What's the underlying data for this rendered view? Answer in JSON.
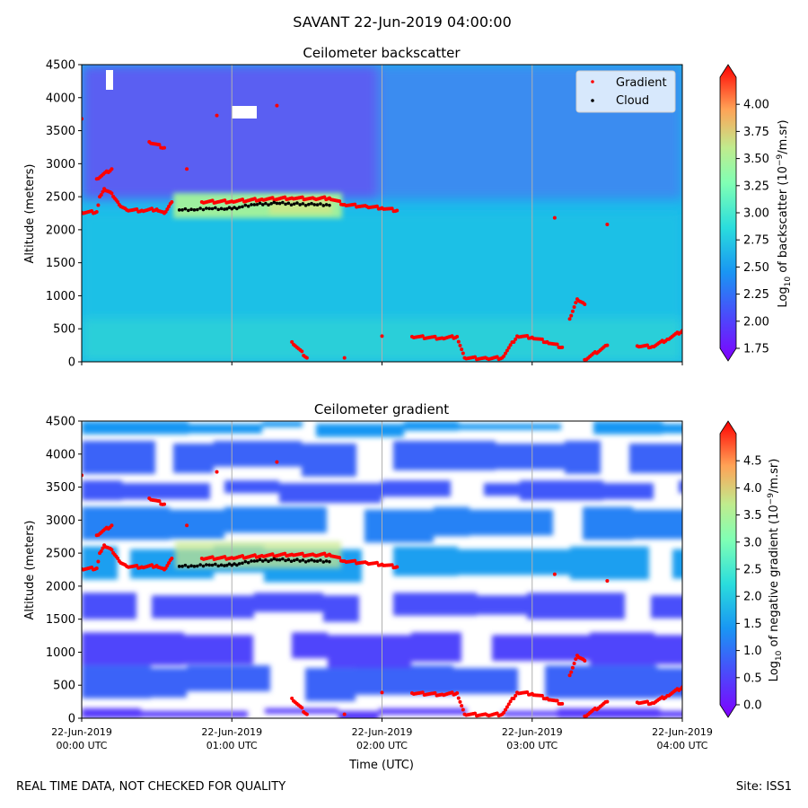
{
  "figure": {
    "suptitle": "SAVANT 22-Jun-2019 04:00:00",
    "footer_left": "REAL TIME DATA, NOT CHECKED FOR QUALITY",
    "footer_right": "Site: ISS1"
  },
  "chart_data": [
    {
      "type": "heatmap",
      "title": "Ceilometer backscatter",
      "xlabel": "",
      "ylabel": "Altitude (meters)",
      "ylim": [
        0,
        4500
      ],
      "xlim_hours": [
        0,
        4
      ],
      "yticks": [
        "0",
        "500",
        "1000",
        "1500",
        "2000",
        "2500",
        "3000",
        "3500",
        "4000",
        "4500"
      ],
      "colorbar": {
        "label_prefix": "Log",
        "label_sub": "10",
        "label_mid": " of backscatter (10",
        "label_sup": "−9",
        "label_suffix": "/m.sr)",
        "range": [
          1.75,
          4.25
        ],
        "ticks": [
          "1.75",
          "2.00",
          "2.25",
          "2.50",
          "2.75",
          "3.00",
          "3.25",
          "3.50",
          "3.75",
          "4.00"
        ]
      },
      "legend": {
        "placement": "top-right",
        "entries": [
          {
            "name": "Gradient",
            "color": "#ff0000"
          },
          {
            "name": "Cloud",
            "color": "#000000"
          }
        ]
      },
      "grid": "vertical lines at hourly ticks",
      "background_fields": {
        "upper_atmosphere_above_2500m": 2.1,
        "boundary_layer_below_2300m": 2.4,
        "cloud_layer_2200_2500m_t0.6_1.5h": 3.0
      },
      "gradient_series": [
        {
          "t": 0.0,
          "alt": 2260
        },
        {
          "t": 0.1,
          "alt": 2270
        },
        {
          "t": 0.12,
          "alt": 2500
        },
        {
          "t": 0.15,
          "alt": 2620
        },
        {
          "t": 0.2,
          "alt": 2550
        },
        {
          "t": 0.25,
          "alt": 2380
        },
        {
          "t": 0.3,
          "alt": 2300
        },
        {
          "t": 0.4,
          "alt": 2290
        },
        {
          "t": 0.5,
          "alt": 2310
        },
        {
          "t": 0.55,
          "alt": 2250
        },
        {
          "t": 0.6,
          "alt": 2420
        },
        {
          "t": 0.8,
          "alt": 2420
        },
        {
          "t": 1.0,
          "alt": 2430
        },
        {
          "t": 1.2,
          "alt": 2460
        },
        {
          "t": 1.4,
          "alt": 2480
        },
        {
          "t": 1.55,
          "alt": 2470
        },
        {
          "t": 1.65,
          "alt": 2480
        },
        {
          "t": 1.75,
          "alt": 2380
        },
        {
          "t": 1.9,
          "alt": 2350
        },
        {
          "t": 2.0,
          "alt": 2330
        },
        {
          "t": 2.1,
          "alt": 2290
        },
        {
          "t": 3.15,
          "alt": 2180
        },
        {
          "t": 3.5,
          "alt": 2080
        },
        {
          "t": 2.0,
          "alt": 390
        },
        {
          "t": 2.2,
          "alt": 380
        },
        {
          "t": 2.4,
          "alt": 360
        },
        {
          "t": 2.5,
          "alt": 380
        },
        {
          "t": 2.55,
          "alt": 60
        },
        {
          "t": 2.7,
          "alt": 50
        },
        {
          "t": 2.8,
          "alt": 60
        },
        {
          "t": 2.9,
          "alt": 390
        },
        {
          "t": 3.0,
          "alt": 370
        },
        {
          "t": 3.1,
          "alt": 300
        },
        {
          "t": 3.2,
          "alt": 220
        },
        {
          "t": 3.25,
          "alt": 650
        },
        {
          "t": 3.3,
          "alt": 950
        },
        {
          "t": 3.35,
          "alt": 870
        },
        {
          "t": 3.35,
          "alt": 30
        },
        {
          "t": 3.5,
          "alt": 250
        },
        {
          "t": 3.7,
          "alt": 240
        },
        {
          "t": 3.8,
          "alt": 230
        },
        {
          "t": 3.9,
          "alt": 340
        },
        {
          "t": 4.0,
          "alt": 470
        },
        {
          "t": 0.0,
          "alt": 3680
        },
        {
          "t": 0.1,
          "alt": 2770
        },
        {
          "t": 0.2,
          "alt": 2920
        },
        {
          "t": 0.7,
          "alt": 2920
        },
        {
          "t": 0.45,
          "alt": 3330
        },
        {
          "t": 0.55,
          "alt": 3240
        },
        {
          "t": 0.9,
          "alt": 3730
        },
        {
          "t": 1.3,
          "alt": 3880
        },
        {
          "t": 1.4,
          "alt": 300
        },
        {
          "t": 1.5,
          "alt": 60
        },
        {
          "t": 1.75,
          "alt": 60
        }
      ],
      "cloud_series": [
        {
          "t": 0.65,
          "alt": 2300
        },
        {
          "t": 0.75,
          "alt": 2300
        },
        {
          "t": 0.85,
          "alt": 2320
        },
        {
          "t": 0.95,
          "alt": 2310
        },
        {
          "t": 1.05,
          "alt": 2340
        },
        {
          "t": 1.15,
          "alt": 2380
        },
        {
          "t": 1.3,
          "alt": 2400
        },
        {
          "t": 1.55,
          "alt": 2380
        },
        {
          "t": 1.65,
          "alt": 2370
        }
      ]
    },
    {
      "type": "heatmap",
      "title": "Ceilometer gradient",
      "xlabel": "Time (UTC)",
      "ylabel": "Altitude (meters)",
      "ylim": [
        0,
        4500
      ],
      "xlim_hours": [
        0,
        4
      ],
      "xticks": [
        {
          "line1": "22-Jun-2019",
          "line2": "00:00 UTC"
        },
        {
          "line1": "22-Jun-2019",
          "line2": "01:00 UTC"
        },
        {
          "line1": "22-Jun-2019",
          "line2": "02:00 UTC"
        },
        {
          "line1": "22-Jun-2019",
          "line2": "03:00 UTC"
        },
        {
          "line1": "22-Jun-2019",
          "line2": "04:00 UTC"
        }
      ],
      "yticks": [
        "0",
        "500",
        "1000",
        "1500",
        "2000",
        "2500",
        "3000",
        "3500",
        "4000",
        "4500"
      ],
      "colorbar": {
        "label_prefix": "Log",
        "label_sub": "10",
        "label_mid": " of negative gradient (10",
        "label_sup": "−9",
        "label_suffix": "/m.sr)",
        "range": [
          0.0,
          5.0
        ],
        "ticks": [
          "0.0",
          "0.5",
          "1.0",
          "1.5",
          "2.0",
          "2.5",
          "3.0",
          "3.5",
          "4.0",
          "4.5"
        ]
      },
      "grid": "vertical lines at hourly ticks",
      "band_fields": [
        {
          "alt_from": 2100,
          "alt_to": 2600,
          "value": 1.6
        },
        {
          "alt_from": 300,
          "alt_to": 800,
          "value": 1.0
        },
        {
          "alt_from": 800,
          "alt_to": 1300,
          "value": 0.7
        },
        {
          "alt_from": 1500,
          "alt_to": 1900,
          "value": 0.8
        },
        {
          "alt_from": 2700,
          "alt_to": 3200,
          "value": 1.3
        },
        {
          "alt_from": 3300,
          "alt_to": 3600,
          "value": 0.9
        },
        {
          "alt_from": 3700,
          "alt_to": 4200,
          "value": 1.0
        },
        {
          "alt_from": 4300,
          "alt_to": 4500,
          "value": 1.5
        },
        {
          "alt_from": 0,
          "alt_to": 150,
          "value": 0.6
        }
      ],
      "same_gradient_and_cloud_overlay": true
    }
  ]
}
